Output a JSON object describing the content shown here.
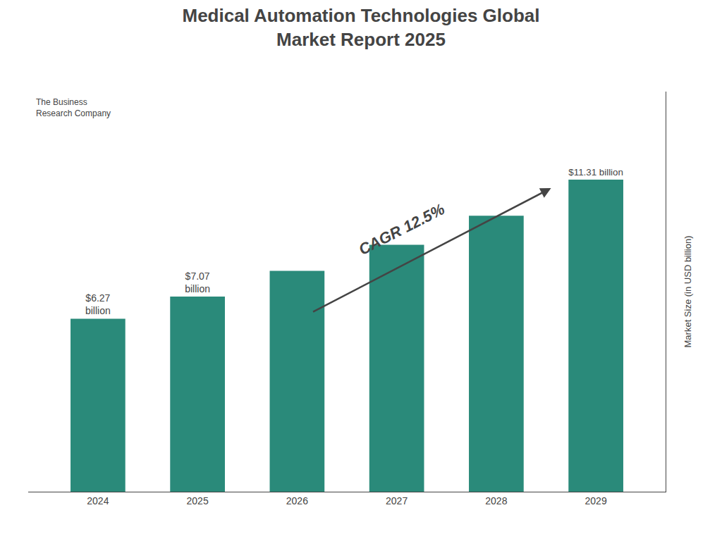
{
  "chart_data": {
    "type": "bar",
    "title": "Medical Automation Technologies Global\nMarket Report 2025",
    "categories": [
      "2024",
      "2025",
      "2026",
      "2027",
      "2028",
      "2029"
    ],
    "values": [
      6.27,
      7.07,
      8.0,
      8.95,
      10.0,
      11.31
    ],
    "value_labels": [
      "$6.27\nbillion",
      "$7.07\nbillion",
      null,
      null,
      null,
      "$11.31 billion"
    ],
    "data_labels": true,
    "color": "#2a8a7a",
    "ylabel": "Market Size (in USD billion)",
    "ylim": [
      0,
      14.5
    ],
    "tick_labels": "x",
    "grid": false,
    "annotations": [
      "CAGR 12.5%",
      "The Business",
      "Research Company"
    ]
  }
}
